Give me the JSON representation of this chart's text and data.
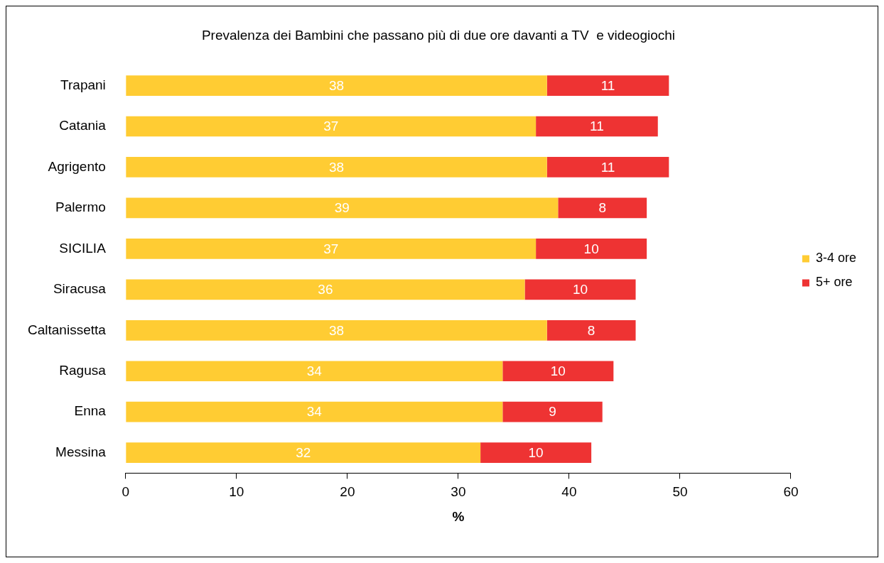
{
  "chart_data": {
    "type": "bar",
    "orientation": "horizontal",
    "stacked": true,
    "title": "Prevalenza dei Bambini che passano più di due ore davanti a TV  e videogiochi",
    "xlabel": "%",
    "categories": [
      "Trapani",
      "Catania",
      "Agrigento",
      "Palermo",
      "SICILIA",
      "Siracusa",
      "Caltanissetta",
      "Ragusa",
      "Enna",
      "Messina"
    ],
    "series": [
      {
        "name": "3-4 ore",
        "color": "#ffcc33",
        "values": [
          38,
          37,
          38,
          39,
          37,
          36,
          38,
          34,
          34,
          32
        ]
      },
      {
        "name": "5+ ore",
        "color": "#ee3333",
        "values": [
          11,
          11,
          11,
          8,
          10,
          10,
          8,
          10,
          9,
          10
        ]
      }
    ],
    "xlim": [
      0,
      60
    ],
    "xticks": [
      0,
      10,
      20,
      30,
      40,
      50,
      60
    ],
    "grid": false,
    "legend": "right",
    "data_labels": true
  }
}
